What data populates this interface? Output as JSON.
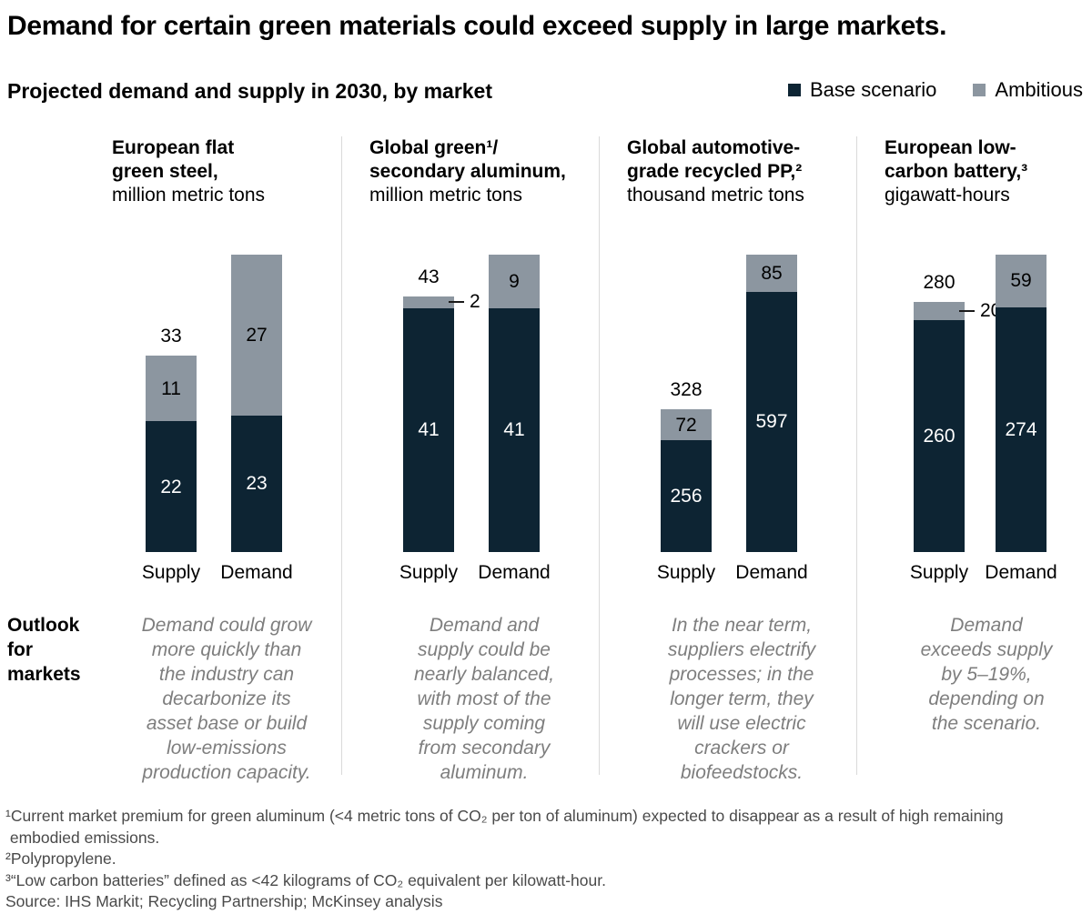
{
  "header": {
    "title": "Demand for certain green materials could exceed supply in large markets.",
    "subtitle": "Projected demand and supply in 2030, by market",
    "legend": [
      {
        "label": "Base scenario",
        "color": "#0d2433"
      },
      {
        "label": "Ambitious",
        "color": "#8c96a0"
      }
    ]
  },
  "row_label": "Outlook\nfor\nmarkets",
  "chart_data": {
    "type": "bar",
    "stacked": true,
    "series_names": [
      "Base scenario",
      "Ambitious"
    ],
    "x_labels": [
      "Supply",
      "Demand"
    ],
    "colors": {
      "base": "#0d2433",
      "ambitious": "#8c96a0"
    },
    "panels": [
      {
        "title": "European flat\ngreen steel,",
        "unit": "million metric tons",
        "supply": {
          "base": 22,
          "ambitious": 11,
          "total_label": "33",
          "callout": false
        },
        "demand": {
          "base": 23,
          "ambitious": 27
        },
        "outlook": "Demand could grow\nmore quickly than\nthe industry can\ndecarbonize its\nasset base or build\nlow-emissions\nproduction capacity."
      },
      {
        "title": "Global green¹/\nsecondary aluminum,",
        "unit": "million metric tons",
        "supply": {
          "base": 41,
          "ambitious": 2,
          "total_label": "43",
          "callout": true
        },
        "demand": {
          "base": 41,
          "ambitious": 9
        },
        "outlook": "Demand and\nsupply could be\nnearly balanced,\nwith most of the\nsupply coming\nfrom secondary\naluminum."
      },
      {
        "title": "Global automotive-\ngrade recycled PP,²",
        "unit": "thousand metric tons",
        "supply": {
          "base": 256,
          "ambitious": 72,
          "total_label": "328",
          "callout": false
        },
        "demand": {
          "base": 597,
          "ambitious": 85
        },
        "outlook": "In the near term,\nsuppliers electrify\nprocesses; in the\nlonger term, they\nwill use electric\ncrackers or\nbiofeedstocks."
      },
      {
        "title": "European low-\ncarbon battery,³",
        "unit": "gigawatt-hours",
        "supply": {
          "base": 260,
          "ambitious": 20,
          "total_label": "280",
          "callout": true
        },
        "demand": {
          "base": 274,
          "ambitious": 59
        },
        "outlook": "Demand\nexceeds supply\nby 5–19%,\ndepending on\nthe scenario."
      }
    ]
  },
  "footnotes": {
    "lines": [
      "¹Current market premium for green aluminum (<4 metric tons of CO₂ per ton of aluminum) expected to disappear as a result of high remaining\n embodied emissions.",
      "²Polypropylene.",
      "³“Low carbon batteries” defined as <42 kilograms of CO₂ equivalent per kilowatt-hour.",
      "Source: IHS Markit; Recycling Partnership; McKinsey analysis"
    ]
  }
}
